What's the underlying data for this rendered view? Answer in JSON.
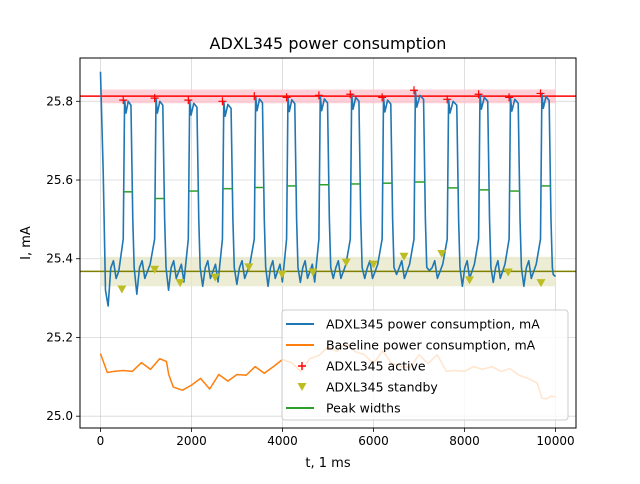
{
  "chart_data": {
    "type": "line",
    "title": "ADXL345 power consumption",
    "xlabel": "t, 1 ms",
    "ylabel": "I, mA",
    "xlim": [
      -450,
      10450
    ],
    "ylim": [
      24.97,
      25.91
    ],
    "xticks": [
      0,
      2000,
      4000,
      6000,
      8000,
      10000
    ],
    "yticks": [
      25.0,
      25.2,
      25.4,
      25.6,
      25.8
    ],
    "ytick_labels": [
      "25.0",
      "25.2",
      "25.4",
      "25.6",
      "25.8"
    ],
    "grid": true,
    "legend_position": "lower-right",
    "colors": {
      "consumption": "#1f77b4",
      "baseline": "#ff7f0e",
      "active_marker": "#ff0000",
      "standby_marker": "#bcbd22",
      "peak_width": "#2ca02c",
      "active_line": "#ff0000",
      "standby_line": "#808000",
      "active_band": "#ffc0cb",
      "standby_band": "#e9e9cc"
    },
    "reference_lines": {
      "active_level": 25.813,
      "active_band": [
        25.795,
        25.83
      ],
      "standby_level": 25.368,
      "standby_band": [
        25.33,
        25.405
      ]
    },
    "peaks": {
      "active_pos": [
        500,
        1190,
        1930,
        2680,
        3380,
        4090,
        4800,
        5490,
        6190,
        6890,
        7620,
        8310,
        8980,
        9670
      ],
      "active_peak_values": [
        25.803,
        25.808,
        25.803,
        25.8,
        25.813,
        25.81,
        25.815,
        25.818,
        25.81,
        25.828,
        25.805,
        25.818,
        25.81,
        25.82
      ],
      "plateau_values": [
        25.8,
        25.8,
        25.795,
        25.792,
        25.806,
        25.804,
        25.806,
        25.81,
        25.803,
        25.815,
        25.8,
        25.81,
        25.805,
        25.812
      ],
      "widths_start": [
        520,
        1210,
        1950,
        2700,
        3400,
        4110,
        4820,
        5510,
        6210,
        6910,
        7640,
        8330,
        9000,
        9690
      ],
      "widths_end": [
        700,
        1400,
        2150,
        2900,
        3590,
        4300,
        5020,
        5710,
        6410,
        7130,
        7860,
        8540,
        9210,
        9890
      ],
      "widths_height": [
        25.57,
        25.553,
        25.572,
        25.578,
        25.581,
        25.585,
        25.588,
        25.59,
        25.592,
        25.595,
        25.58,
        25.575,
        25.572,
        25.585
      ]
    },
    "standby": {
      "x": [
        470,
        1190,
        1750,
        2520,
        3260,
        3990,
        4670,
        5400,
        6000,
        6670,
        7500,
        8110,
        8960,
        9680
      ],
      "y": [
        25.322,
        25.372,
        25.338,
        25.352,
        25.378,
        25.36,
        25.365,
        25.39,
        25.385,
        25.405,
        25.412,
        25.345,
        25.365,
        25.338
      ],
      "dip_values": [
        25.28,
        25.31,
        25.32,
        25.33,
        25.335,
        25.33,
        25.34,
        25.35,
        25.35,
        25.36,
        25.37,
        25.33,
        25.34,
        25.33
      ]
    },
    "series": [
      {
        "name": "ADXL345 power consumption, mA",
        "start": 25.875,
        "end": 25.355,
        "x_end": 10000
      },
      {
        "name": "Baseline power consumption, mA",
        "x": [
          0,
          150,
          300,
          500,
          700,
          900,
          1100,
          1300,
          1450,
          1500,
          1600,
          1800,
          2000,
          2200,
          2400,
          2600,
          2800,
          3000,
          3200,
          3400,
          3600,
          3800,
          4000,
          4200,
          4400,
          4600,
          4800,
          5000,
          5200,
          5400,
          5600,
          5800,
          6000,
          6200,
          6400,
          6600,
          6800,
          7000,
          7200,
          7400,
          7600,
          7800,
          8000,
          8200,
          8400,
          8600,
          8800,
          9000,
          9200,
          9400,
          9600,
          9700,
          9800,
          9900,
          10000
        ],
        "y": [
          25.165,
          25.105,
          25.12,
          25.11,
          25.12,
          25.13,
          25.125,
          25.14,
          25.145,
          25.1,
          25.08,
          25.06,
          25.085,
          25.09,
          25.075,
          25.1,
          25.095,
          25.1,
          25.11,
          25.12,
          25.115,
          25.12,
          25.15,
          25.13,
          25.12,
          25.14,
          25.16,
          25.17,
          25.17,
          25.18,
          25.17,
          25.15,
          25.14,
          25.16,
          25.14,
          25.12,
          25.13,
          25.15,
          25.14,
          25.15,
          25.12,
          25.11,
          25.12,
          25.12,
          25.125,
          25.12,
          25.12,
          25.115,
          25.11,
          25.09,
          25.09,
          25.04,
          25.05,
          25.045,
          25.055
        ]
      }
    ],
    "legend": [
      {
        "label": "ADXL345 power consumption, mA",
        "kind": "line",
        "color": "#1f77b4"
      },
      {
        "label": "Baseline power consumption, mA",
        "kind": "line",
        "color": "#ff7f0e"
      },
      {
        "label": "ADXL345 active",
        "kind": "plus",
        "color": "#ff0000"
      },
      {
        "label": "ADXL345 standby",
        "kind": "triangle",
        "color": "#bcbd22"
      },
      {
        "label": "Peak widths",
        "kind": "line",
        "color": "#2ca02c"
      }
    ]
  }
}
